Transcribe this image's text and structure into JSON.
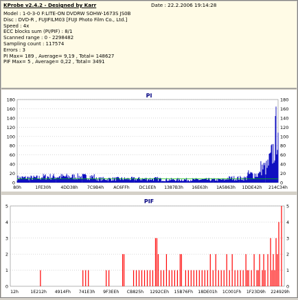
{
  "info": {
    "app_title": "KProbe v2.4.2 - Designed by Karr",
    "date": "Date : 22.2.2006 19:14:28",
    "lines": [
      "Model : 1-0-3-0 F:LITE-ON DVDRW SOHW-1673S JS0B",
      "Disc : DVD-R , FUJIFILM03 [FUJI Photo Film Co., Ltd.]",
      "Speed : 4x",
      "ECC blocks sum (PI/PIF) : 8/1",
      "Scanned range : 0 - 2298482",
      "Sampling count : 117574",
      "Errors : 3",
      "PI Max= 189 , Average= 9,19 , Total= 148627",
      "PIF Max= 5 , Average= 0,22 , Total= 3491"
    ]
  },
  "chart_data": [
    {
      "type": "area",
      "title": "PI",
      "ylim": [
        0,
        180
      ],
      "y_ticks": [
        "0",
        "20",
        "40",
        "60",
        "80",
        "100",
        "120",
        "140",
        "160",
        "180"
      ],
      "x_ticks": [
        "80h",
        "1FE30h",
        "4DD38h",
        "7C9B4h",
        "AC6FFh",
        "DC1EEh",
        "1387B3h",
        "16E63h",
        "1A5863h",
        "1DDE42h",
        "214C34h"
      ],
      "series_color": "#1010c0",
      "baseline_level": 8,
      "segments": [
        {
          "x0": 0,
          "x1": 0.09,
          "level": 13
        },
        {
          "x0": 0.09,
          "x1": 0.3,
          "level": 16
        },
        {
          "x0": 0.3,
          "x1": 0.55,
          "level": 10
        },
        {
          "x0": 0.55,
          "x1": 0.8,
          "level": 8
        },
        {
          "x0": 0.8,
          "x1": 0.88,
          "level": 12
        },
        {
          "x0": 0.88,
          "x1": 0.93,
          "level": 22
        },
        {
          "x0": 0.93,
          "x1": 0.96,
          "level": 40
        },
        {
          "x0": 0.96,
          "x1": 0.985,
          "level": 90
        },
        {
          "x0": 0.985,
          "x1": 1.0,
          "level": 185
        }
      ]
    },
    {
      "type": "bar",
      "title": "PIF",
      "ylim": [
        0,
        5
      ],
      "y_ticks": [
        "0",
        "1",
        "2",
        "3",
        "4",
        "5"
      ],
      "x_ticks": [
        "12h",
        "1E212h",
        "4914Fh",
        "741E3h",
        "9F3EEh",
        "CB825h",
        "1292CEh",
        "15B76Fh",
        "18DE01h",
        "1C001Fh",
        "1F23D9h",
        "224929h"
      ],
      "series_color": "#ff0000",
      "bars": [
        {
          "x": 0.11,
          "v": 1
        },
        {
          "x": 0.265,
          "v": 1
        },
        {
          "x": 0.275,
          "v": 1
        },
        {
          "x": 0.285,
          "v": 1
        },
        {
          "x": 0.35,
          "v": 1
        },
        {
          "x": 0.36,
          "v": 1
        },
        {
          "x": 0.41,
          "v": 2
        },
        {
          "x": 0.415,
          "v": 2
        },
        {
          "x": 0.45,
          "v": 1
        },
        {
          "x": 0.46,
          "v": 1
        },
        {
          "x": 0.47,
          "v": 1
        },
        {
          "x": 0.48,
          "v": 1
        },
        {
          "x": 0.49,
          "v": 1
        },
        {
          "x": 0.5,
          "v": 1
        },
        {
          "x": 0.51,
          "v": 1
        },
        {
          "x": 0.52,
          "v": 1
        },
        {
          "x": 0.53,
          "v": 3
        },
        {
          "x": 0.535,
          "v": 3
        },
        {
          "x": 0.54,
          "v": 2
        },
        {
          "x": 0.55,
          "v": 1
        },
        {
          "x": 0.56,
          "v": 1
        },
        {
          "x": 0.57,
          "v": 2
        },
        {
          "x": 0.58,
          "v": 1
        },
        {
          "x": 0.59,
          "v": 1
        },
        {
          "x": 0.6,
          "v": 1
        },
        {
          "x": 0.61,
          "v": 1
        },
        {
          "x": 0.62,
          "v": 2
        },
        {
          "x": 0.625,
          "v": 2
        },
        {
          "x": 0.64,
          "v": 1
        },
        {
          "x": 0.65,
          "v": 1
        },
        {
          "x": 0.66,
          "v": 1
        },
        {
          "x": 0.67,
          "v": 1
        },
        {
          "x": 0.68,
          "v": 1
        },
        {
          "x": 0.69,
          "v": 1
        },
        {
          "x": 0.7,
          "v": 1
        },
        {
          "x": 0.71,
          "v": 1
        },
        {
          "x": 0.72,
          "v": 1
        },
        {
          "x": 0.73,
          "v": 2
        },
        {
          "x": 0.74,
          "v": 1
        },
        {
          "x": 0.75,
          "v": 2
        },
        {
          "x": 0.76,
          "v": 1
        },
        {
          "x": 0.77,
          "v": 1
        },
        {
          "x": 0.78,
          "v": 1
        },
        {
          "x": 0.79,
          "v": 2
        },
        {
          "x": 0.8,
          "v": 1
        },
        {
          "x": 0.81,
          "v": 2
        },
        {
          "x": 0.82,
          "v": 1
        },
        {
          "x": 0.83,
          "v": 1
        },
        {
          "x": 0.84,
          "v": 1
        },
        {
          "x": 0.85,
          "v": 1
        },
        {
          "x": 0.86,
          "v": 2
        },
        {
          "x": 0.865,
          "v": 1
        },
        {
          "x": 0.87,
          "v": 1
        },
        {
          "x": 0.88,
          "v": 1
        },
        {
          "x": 0.89,
          "v": 2
        },
        {
          "x": 0.9,
          "v": 1
        },
        {
          "x": 0.905,
          "v": 1
        },
        {
          "x": 0.91,
          "v": 2
        },
        {
          "x": 0.92,
          "v": 1
        },
        {
          "x": 0.925,
          "v": 2
        },
        {
          "x": 0.93,
          "v": 1
        },
        {
          "x": 0.94,
          "v": 2
        },
        {
          "x": 0.95,
          "v": 3
        },
        {
          "x": 0.955,
          "v": 1
        },
        {
          "x": 0.96,
          "v": 2
        },
        {
          "x": 0.965,
          "v": 1
        },
        {
          "x": 0.97,
          "v": 3
        },
        {
          "x": 0.975,
          "v": 2
        },
        {
          "x": 0.98,
          "v": 4
        },
        {
          "x": 0.99,
          "v": 5
        }
      ]
    }
  ]
}
